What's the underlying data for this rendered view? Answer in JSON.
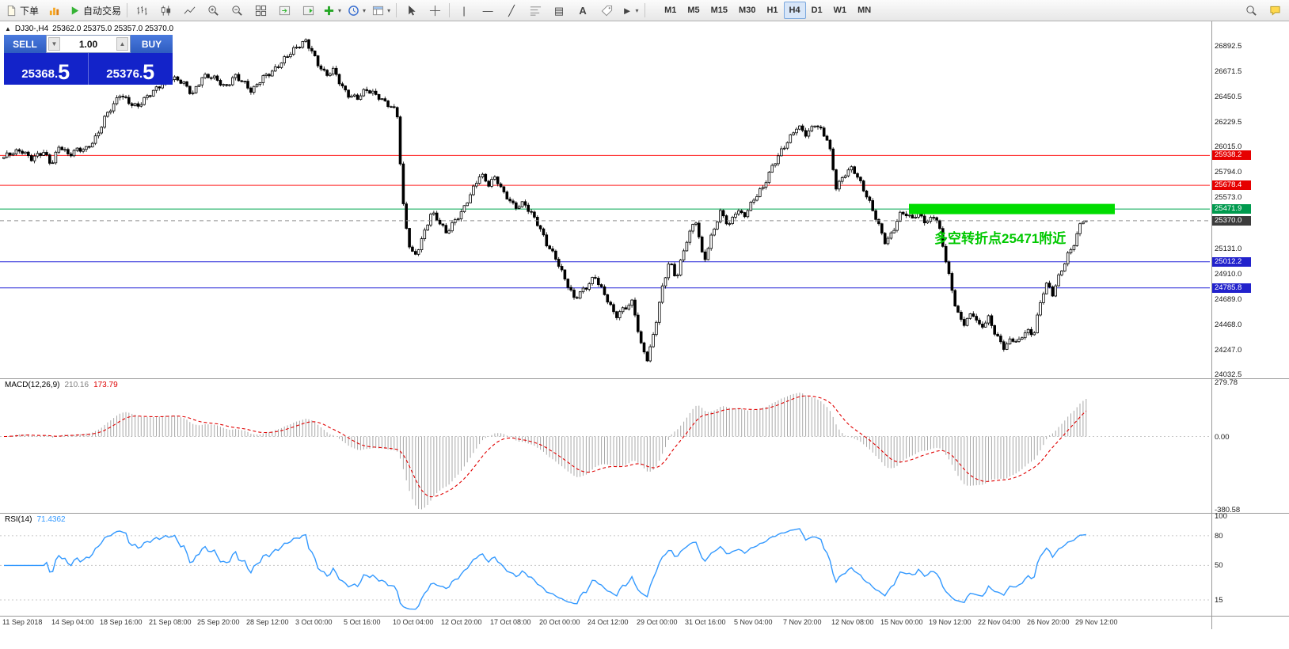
{
  "toolbar": {
    "new_order": "下单",
    "auto_trading": "自动交易",
    "timeframes": [
      "M1",
      "M5",
      "M15",
      "M30",
      "H1",
      "H4",
      "D1",
      "W1",
      "MN"
    ],
    "active_timeframe": "H4",
    "glyphs": {
      "caret": "▾",
      "vline": "|",
      "hline": "—",
      "trend": "╱",
      "channel": "▤",
      "text": "A",
      "arrow": "►"
    }
  },
  "chart_header": {
    "collapse": "▲",
    "symbol": "DJ30-,H4",
    "ohlc": "25362.0 25375.0 25357.0 25370.0"
  },
  "one_click": {
    "sell_label": "SELL",
    "buy_label": "BUY",
    "volume": "1.00",
    "up_icon": "▲",
    "down_icon": "▼",
    "sell_price": "25368.",
    "sell_price_big": "5",
    "buy_price": "25376.",
    "buy_price_big": "5"
  },
  "annotation": {
    "text": "多空转折点25471附近",
    "color": "#00c800"
  },
  "macd_panel": {
    "name": "MACD(12,26,9)",
    "main_value": "210.16",
    "signal_value": "173.79"
  },
  "rsi_panel": {
    "name": "RSI(14)",
    "value": "71.4362"
  },
  "chart_data": [
    {
      "type": "candlestick",
      "symbol": "DJ30-",
      "timeframe": "H4",
      "current_ohlc": {
        "open": 25362.0,
        "high": 25375.0,
        "low": 25357.0,
        "close": 25370.0
      },
      "ylim": [
        24005,
        27085
      ],
      "y_ticks": [
        26892.5,
        26671.5,
        26450.5,
        26229.5,
        26015.0,
        25794.0,
        25573.0,
        25131.0,
        24910.0,
        24689.0,
        24468.0,
        24247.0,
        24032.5
      ],
      "x_ticks": [
        "11 Sep 2018",
        "14 Sep 04:00",
        "18 Sep 16:00",
        "21 Sep 08:00",
        "25 Sep 20:00",
        "28 Sep 12:00",
        "3 Oct 00:00",
        "5 Oct 16:00",
        "10 Oct 04:00",
        "12 Oct 20:00",
        "17 Oct 08:00",
        "20 Oct 00:00",
        "24 Oct 12:00",
        "29 Oct 00:00",
        "31 Oct 16:00",
        "5 Nov 04:00",
        "7 Nov 20:00",
        "12 Nov 08:00",
        "15 Nov 00:00",
        "19 Nov 12:00",
        "22 Nov 04:00",
        "26 Nov 20:00",
        "29 Nov 12:00"
      ],
      "num_bars": 356,
      "bars_per_tick": 16,
      "close_keyframes": [
        [
          0.0,
          25880
        ],
        [
          0.008,
          25950
        ],
        [
          0.018,
          26000
        ],
        [
          0.028,
          25900
        ],
        [
          0.038,
          25960
        ],
        [
          0.045,
          25870
        ],
        [
          0.052,
          26040
        ],
        [
          0.06,
          25930
        ],
        [
          0.068,
          25980
        ],
        [
          0.075,
          26000
        ],
        [
          0.085,
          26120
        ],
        [
          0.091,
          26250
        ],
        [
          0.1,
          26380
        ],
        [
          0.105,
          26480
        ],
        [
          0.112,
          26420
        ],
        [
          0.12,
          26360
        ],
        [
          0.13,
          26450
        ],
        [
          0.14,
          26560
        ],
        [
          0.149,
          26620
        ],
        [
          0.16,
          26560
        ],
        [
          0.168,
          26470
        ],
        [
          0.177,
          26640
        ],
        [
          0.185,
          26620
        ],
        [
          0.197,
          26520
        ],
        [
          0.205,
          26650
        ],
        [
          0.213,
          26580
        ],
        [
          0.22,
          26480
        ],
        [
          0.23,
          26620
        ],
        [
          0.24,
          26700
        ],
        [
          0.252,
          26800
        ],
        [
          0.262,
          26900
        ],
        [
          0.267,
          26950
        ],
        [
          0.272,
          26870
        ],
        [
          0.278,
          26730
        ],
        [
          0.285,
          26620
        ],
        [
          0.292,
          26680
        ],
        [
          0.298,
          26560
        ],
        [
          0.305,
          26470
        ],
        [
          0.313,
          26430
        ],
        [
          0.32,
          26500
        ],
        [
          0.33,
          26470
        ],
        [
          0.34,
          26380
        ],
        [
          0.347,
          26300
        ],
        [
          0.352,
          25520
        ],
        [
          0.357,
          25180
        ],
        [
          0.362,
          25060
        ],
        [
          0.37,
          25250
        ],
        [
          0.377,
          25430
        ],
        [
          0.383,
          25360
        ],
        [
          0.39,
          25270
        ],
        [
          0.397,
          25380
        ],
        [
          0.404,
          25450
        ],
        [
          0.412,
          25600
        ],
        [
          0.42,
          25780
        ],
        [
          0.427,
          25700
        ],
        [
          0.433,
          25760
        ],
        [
          0.44,
          25600
        ],
        [
          0.45,
          25480
        ],
        [
          0.458,
          25540
        ],
        [
          0.468,
          25380
        ],
        [
          0.478,
          25150
        ],
        [
          0.486,
          25050
        ],
        [
          0.494,
          24870
        ],
        [
          0.502,
          24680
        ],
        [
          0.512,
          24780
        ],
        [
          0.52,
          24900
        ],
        [
          0.53,
          24700
        ],
        [
          0.538,
          24520
        ],
        [
          0.545,
          24600
        ],
        [
          0.553,
          24680
        ],
        [
          0.56,
          24300
        ],
        [
          0.566,
          24150
        ],
        [
          0.572,
          24400
        ],
        [
          0.578,
          24750
        ],
        [
          0.585,
          25040
        ],
        [
          0.591,
          24870
        ],
        [
          0.6,
          25180
        ],
        [
          0.608,
          25380
        ],
        [
          0.615,
          25020
        ],
        [
          0.623,
          25280
        ],
        [
          0.63,
          25440
        ],
        [
          0.637,
          25310
        ],
        [
          0.644,
          25480
        ],
        [
          0.65,
          25420
        ],
        [
          0.658,
          25540
        ],
        [
          0.667,
          25650
        ],
        [
          0.675,
          25850
        ],
        [
          0.682,
          25980
        ],
        [
          0.69,
          26080
        ],
        [
          0.697,
          26180
        ],
        [
          0.705,
          26120
        ],
        [
          0.712,
          26230
        ],
        [
          0.718,
          26160
        ],
        [
          0.724,
          26050
        ],
        [
          0.731,
          25640
        ],
        [
          0.738,
          25780
        ],
        [
          0.745,
          25850
        ],
        [
          0.752,
          25700
        ],
        [
          0.758,
          25560
        ],
        [
          0.766,
          25380
        ],
        [
          0.774,
          25190
        ],
        [
          0.78,
          25280
        ],
        [
          0.788,
          25440
        ],
        [
          0.796,
          25380
        ],
        [
          0.803,
          25450
        ],
        [
          0.81,
          25360
        ],
        [
          0.817,
          25420
        ],
        [
          0.822,
          25250
        ],
        [
          0.828,
          24950
        ],
        [
          0.836,
          24600
        ],
        [
          0.842,
          24480
        ],
        [
          0.85,
          24560
        ],
        [
          0.857,
          24420
        ],
        [
          0.864,
          24530
        ],
        [
          0.87,
          24400
        ],
        [
          0.878,
          24260
        ],
        [
          0.884,
          24330
        ],
        [
          0.89,
          24300
        ],
        [
          0.897,
          24430
        ],
        [
          0.903,
          24380
        ],
        [
          0.908,
          24600
        ],
        [
          0.914,
          24820
        ],
        [
          0.92,
          24720
        ],
        [
          0.926,
          24900
        ],
        [
          0.933,
          25080
        ],
        [
          0.94,
          25200
        ],
        [
          0.945,
          25360
        ],
        [
          0.949,
          25370
        ]
      ],
      "horizontal_lines": [
        {
          "price": 25938.2,
          "label": "25938.2",
          "color": "#ff2020",
          "badge": "#e60000"
        },
        {
          "price": 25678.4,
          "label": "25678.4",
          "color": "#ff2020",
          "badge": "#e60000"
        },
        {
          "price": 25471.9,
          "label": "25471.9",
          "color": "#00a651",
          "badge": "#009a4e"
        },
        {
          "price": 25012.2,
          "label": "25012.2",
          "color": "#2525d8",
          "badge": "#2222cc"
        },
        {
          "price": 24785.8,
          "label": "24785.8",
          "color": "#2525d8",
          "badge": "#2222cc"
        }
      ],
      "current_price": {
        "value": 25370.0,
        "label": "25370.0",
        "badge": "#3c3c3c"
      },
      "highlight_segment": {
        "price": 25471.9,
        "x_start_frac": 0.751,
        "x_end_frac": 0.921,
        "color": "#00dc00",
        "thickness": 13
      }
    },
    {
      "type": "macd",
      "name": "MACD(12,26,9)",
      "params": [
        12,
        26,
        9
      ],
      "current_main": 210.16,
      "current_signal": 173.79,
      "y_ticks": [
        279.78,
        0.0,
        -380.58
      ],
      "source": "derived from candlestick closes"
    },
    {
      "type": "rsi",
      "name": "RSI(14)",
      "period": 14,
      "current": 71.4362,
      "y_ticks": [
        100,
        80,
        50,
        15
      ],
      "levels": [
        80,
        50,
        15
      ],
      "source": "derived from candlestick closes"
    }
  ]
}
